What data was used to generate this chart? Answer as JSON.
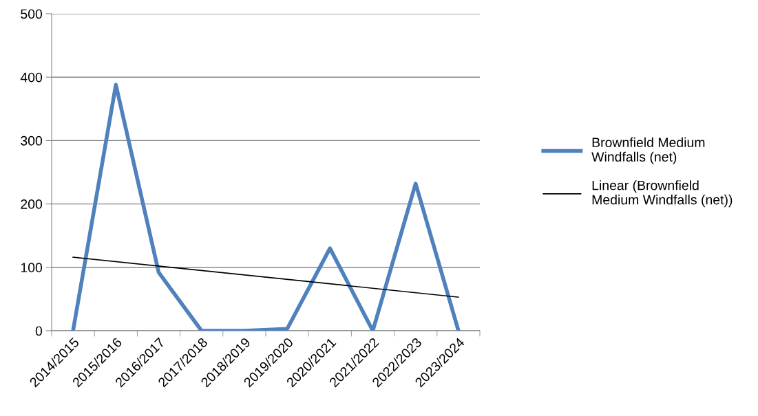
{
  "chart_data": {
    "type": "line",
    "categories": [
      "2014/2015",
      "2015/2016",
      "2016/2017",
      "2017/2018",
      "2018/2019",
      "2019/2020",
      "2020/2021",
      "2021/2022",
      "2022/2023",
      "2023/2024"
    ],
    "series": [
      {
        "name": "Brownfield Medium Windfalls (net)",
        "color": "#4f81bd",
        "values": [
          0,
          388,
          92,
          0,
          0,
          3,
          130,
          0,
          232,
          0
        ]
      },
      {
        "name": "Linear (Brownfield Medium Windfalls (net))",
        "color": "#000000",
        "x": [
          "2014/2015",
          "2023/2024"
        ],
        "values": [
          116,
          53
        ]
      }
    ],
    "ylim": [
      0,
      500
    ],
    "yticks": [
      0,
      100,
      200,
      300,
      400,
      500
    ],
    "grid": "y",
    "legend": "right",
    "marker": "none",
    "line_style": "solid"
  }
}
